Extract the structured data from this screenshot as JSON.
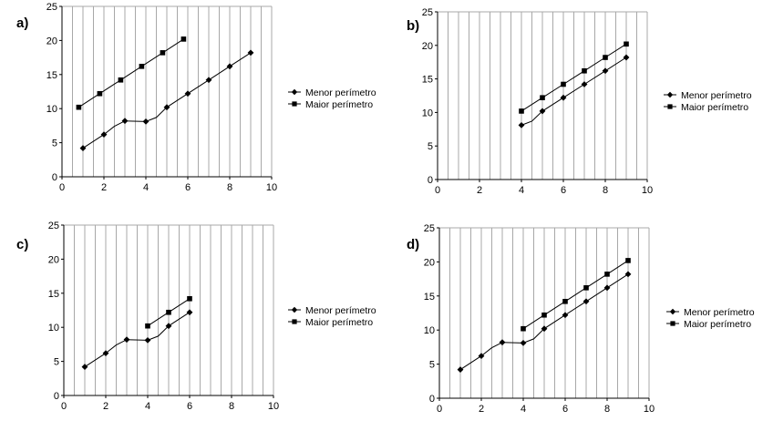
{
  "chart_data": [
    {
      "type": "line",
      "panel_label": "a)",
      "xlim": [
        0,
        10
      ],
      "ylim": [
        0,
        25
      ],
      "x_ticks": [
        "0",
        "2",
        "4",
        "6",
        "8",
        "10"
      ],
      "y_ticks": [
        "0",
        "5",
        "10",
        "15",
        "20",
        "25"
      ],
      "grid": true,
      "legend_position": "right",
      "series": [
        {
          "name": "Menor perímetro",
          "marker": "diamond",
          "points": [
            [
              1,
              4.2
            ],
            [
              2,
              6.2
            ],
            [
              2.5,
              7.4
            ],
            [
              3,
              8.2
            ],
            [
              4,
              8.1
            ],
            [
              4.5,
              8.7
            ],
            [
              5,
              10.2
            ],
            [
              6,
              12.2
            ],
            [
              7,
              14.2
            ],
            [
              8,
              16.2
            ],
            [
              9,
              18.2
            ]
          ],
          "marked_x": [
            1,
            2,
            3,
            4,
            5,
            6,
            7,
            8,
            9
          ]
        },
        {
          "name": "Maior perímetro",
          "marker": "square",
          "points": [
            [
              0.8,
              10.2
            ],
            [
              1.8,
              12.2
            ],
            [
              2.8,
              14.2
            ],
            [
              3.8,
              16.2
            ],
            [
              4.8,
              18.2
            ],
            [
              5.8,
              20.2
            ]
          ],
          "marked_x": [
            0.8,
            1.8,
            2.8,
            3.8,
            4.8,
            5.8
          ]
        }
      ]
    },
    {
      "type": "line",
      "panel_label": "b)",
      "xlim": [
        0,
        10
      ],
      "ylim": [
        0,
        25
      ],
      "x_ticks": [
        "0",
        "2",
        "4",
        "6",
        "8",
        "10"
      ],
      "y_ticks": [
        "0",
        "5",
        "10",
        "15",
        "20",
        "25"
      ],
      "grid": true,
      "legend_position": "right",
      "series": [
        {
          "name": "Menor perímetro",
          "marker": "diamond",
          "points": [
            [
              4,
              8.1
            ],
            [
              4.5,
              8.7
            ],
            [
              5,
              10.2
            ],
            [
              6,
              12.2
            ],
            [
              7,
              14.2
            ],
            [
              8,
              16.2
            ],
            [
              9,
              18.2
            ]
          ],
          "marked_x": [
            4,
            5,
            6,
            7,
            8,
            9
          ]
        },
        {
          "name": "Maior perímetro",
          "marker": "square",
          "points": [
            [
              4,
              10.2
            ],
            [
              5,
              12.2
            ],
            [
              6,
              14.2
            ],
            [
              7,
              16.2
            ],
            [
              8,
              18.2
            ],
            [
              9,
              20.2
            ]
          ],
          "marked_x": [
            4,
            5,
            6,
            7,
            8,
            9
          ]
        }
      ]
    },
    {
      "type": "line",
      "panel_label": "c)",
      "xlim": [
        0,
        10
      ],
      "ylim": [
        0,
        25
      ],
      "x_ticks": [
        "0",
        "2",
        "4",
        "6",
        "8",
        "10"
      ],
      "y_ticks": [
        "0",
        "5",
        "10",
        "15",
        "20",
        "25"
      ],
      "grid": true,
      "legend_position": "right",
      "series": [
        {
          "name": "Menor perímetro",
          "marker": "diamond",
          "points": [
            [
              1,
              4.2
            ],
            [
              2,
              6.2
            ],
            [
              2.5,
              7.4
            ],
            [
              3,
              8.2
            ],
            [
              4,
              8.1
            ],
            [
              4.5,
              8.7
            ],
            [
              5,
              10.2
            ],
            [
              6,
              12.2
            ]
          ],
          "marked_x": [
            1,
            2,
            3,
            4,
            5,
            6
          ]
        },
        {
          "name": "Maior perímetro",
          "marker": "square",
          "points": [
            [
              4,
              10.2
            ],
            [
              5,
              12.2
            ],
            [
              6,
              14.2
            ]
          ],
          "marked_x": [
            4,
            5,
            6
          ]
        }
      ]
    },
    {
      "type": "line",
      "panel_label": "d)",
      "xlim": [
        0,
        10
      ],
      "ylim": [
        0,
        25
      ],
      "x_ticks": [
        "0",
        "2",
        "4",
        "6",
        "8",
        "10"
      ],
      "y_ticks": [
        "0",
        "5",
        "10",
        "15",
        "20",
        "25"
      ],
      "grid": true,
      "legend_position": "right",
      "series": [
        {
          "name": "Menor perímetro",
          "marker": "diamond",
          "points": [
            [
              1,
              4.2
            ],
            [
              2,
              6.2
            ],
            [
              2.5,
              7.4
            ],
            [
              3,
              8.2
            ],
            [
              4,
              8.1
            ],
            [
              4.5,
              8.7
            ],
            [
              5,
              10.2
            ],
            [
              6,
              12.2
            ],
            [
              7,
              14.2
            ],
            [
              8,
              16.2
            ],
            [
              9,
              18.2
            ]
          ],
          "marked_x": [
            1,
            2,
            3,
            4,
            5,
            6,
            7,
            8,
            9
          ]
        },
        {
          "name": "Maior perímetro",
          "marker": "square",
          "points": [
            [
              4,
              10.2
            ],
            [
              5,
              12.2
            ],
            [
              6,
              14.2
            ],
            [
              7,
              16.2
            ],
            [
              8,
              18.2
            ],
            [
              9,
              20.2
            ]
          ],
          "marked_x": [
            4,
            5,
            6,
            7,
            8,
            9
          ]
        }
      ]
    }
  ]
}
